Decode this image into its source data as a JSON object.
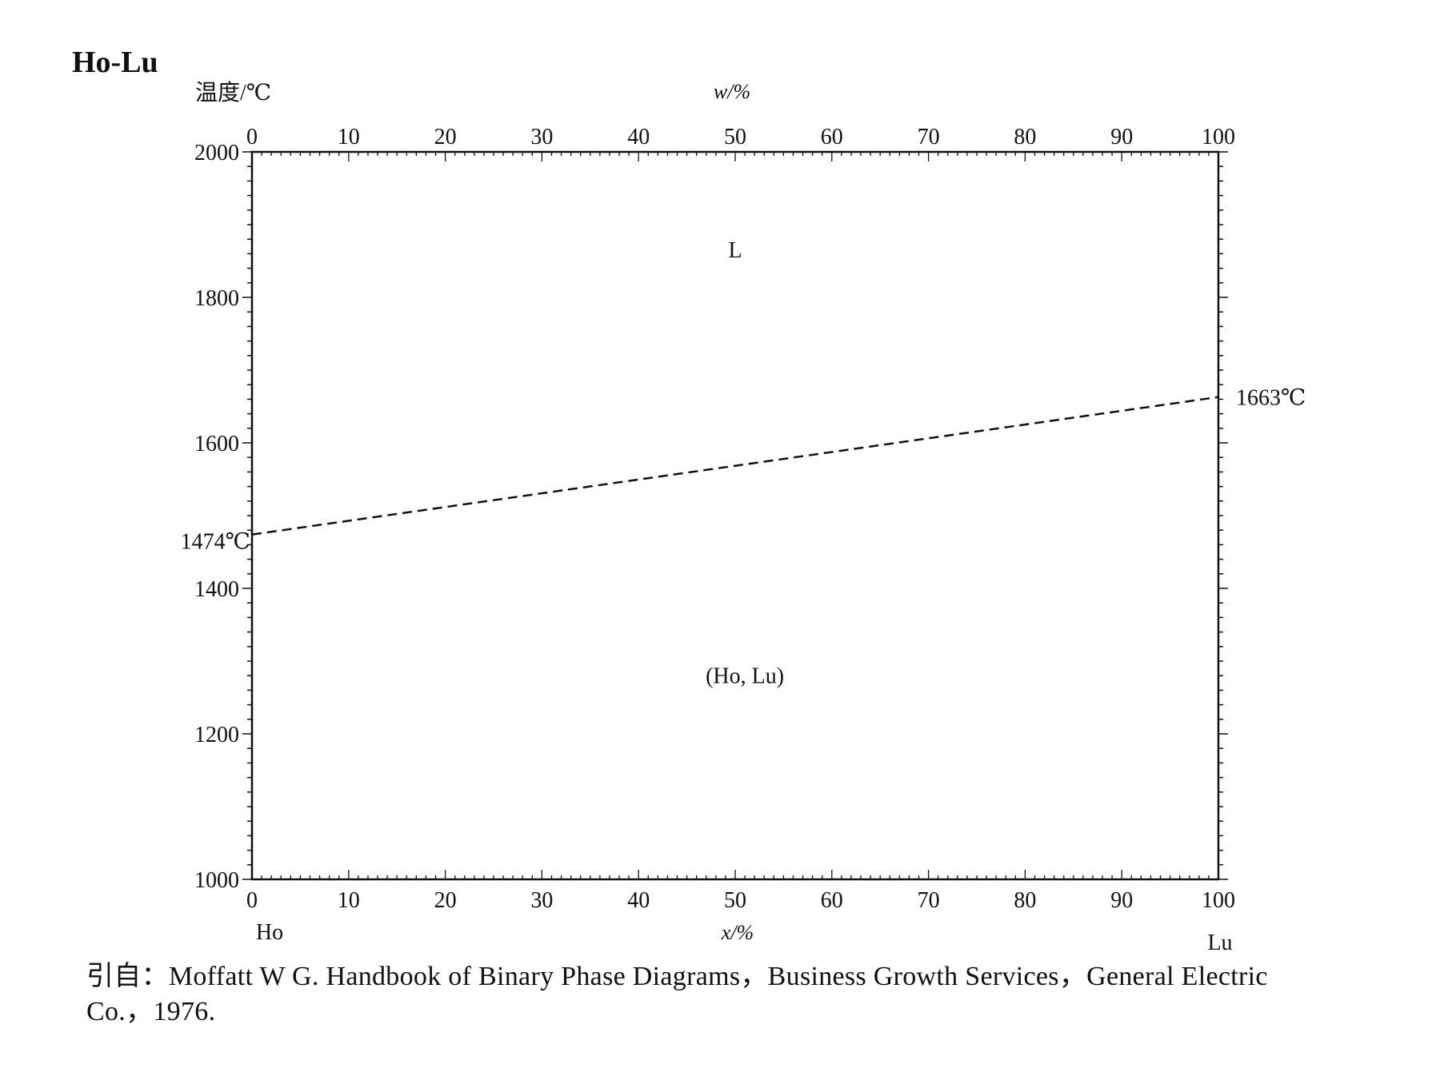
{
  "chart_data": {
    "type": "line",
    "title": "Ho-Lu",
    "ylabel": "温度/℃",
    "xlabel_top": "w/%",
    "xlabel_bottom": "x/%",
    "ylim": [
      1000,
      2000
    ],
    "xlim": [
      0,
      100
    ],
    "y_ticks": [
      "1000",
      "1200",
      "1400",
      "1600",
      "1800",
      "2000"
    ],
    "y_tick_values": [
      1000,
      1200,
      1400,
      1600,
      1800,
      2000
    ],
    "x_top_ticks": [
      "0",
      "10",
      "20",
      "30",
      "40",
      "50",
      "60",
      "70",
      "80",
      "90",
      "100"
    ],
    "x_bottom_ticks": [
      "0",
      "10",
      "20",
      "30",
      "40",
      "50",
      "60",
      "70",
      "80",
      "90",
      "100"
    ],
    "x_tick_values": [
      0,
      10,
      20,
      30,
      40,
      50,
      60,
      70,
      80,
      90,
      100
    ],
    "left_element": "Ho",
    "right_element": "Lu",
    "series": [
      {
        "style": "dashed",
        "x": [
          0,
          100
        ],
        "y": [
          1474,
          1663
        ]
      }
    ],
    "annotations": {
      "left_point": "1474℃",
      "right_point": "1663℃",
      "phase_liquid": "L",
      "phase_solid": "(Ho, Lu)"
    },
    "phase_liquid_pos": {
      "x": 50,
      "y": 1855
    },
    "phase_solid_pos": {
      "x": 51,
      "y": 1270
    },
    "grid": false,
    "legend": "none"
  },
  "caption": {
    "line1": "引自：Moffatt W G.  Handbook of Binary Phase Diagrams，Business Growth Services，General Electric",
    "line2": "Co.，1976."
  }
}
